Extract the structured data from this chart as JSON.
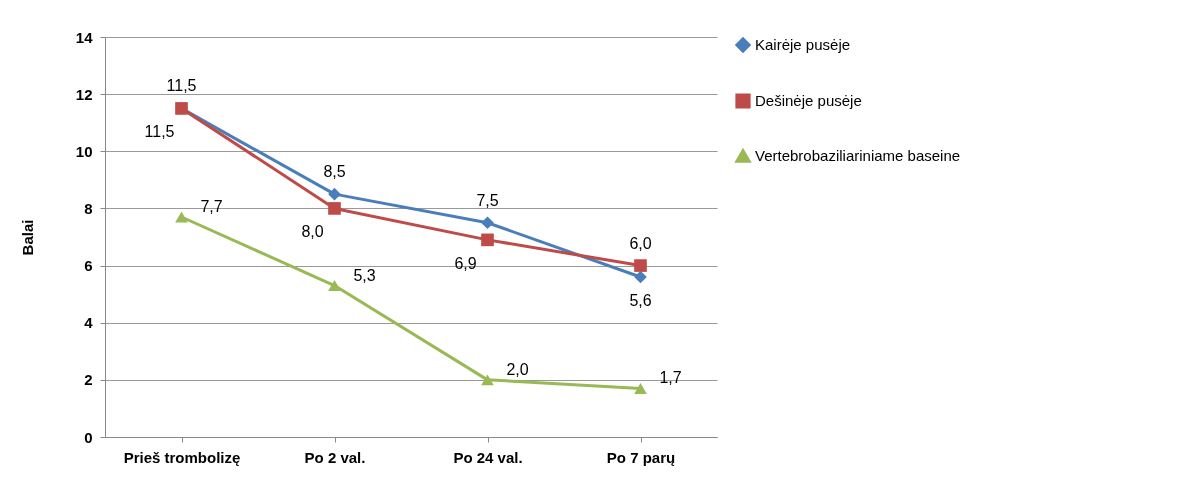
{
  "chart_data": {
    "type": "line",
    "ylabel": "Balai",
    "categories": [
      "Prieš trombolizę",
      "Po 2 val.",
      "Po 24 val.",
      "Po 7 parų"
    ],
    "series": [
      {
        "name": "Kairėje pusėje",
        "color": "#4a7ebb",
        "marker": "diamond",
        "values": [
          11.5,
          8.5,
          7.5,
          5.6
        ],
        "value_labels": [
          "11,5",
          "8,5",
          "7,5",
          "5,6"
        ]
      },
      {
        "name": "Dešinėje pusėje",
        "color": "#be4b48",
        "marker": "square",
        "values": [
          11.5,
          8.0,
          6.9,
          6.0
        ],
        "value_labels": [
          "11,5",
          "8,0",
          "6,9",
          "6,0"
        ]
      },
      {
        "name": "Vertebrobaziliariniame baseine",
        "color": "#98b954",
        "marker": "triangle",
        "values": [
          7.7,
          5.3,
          2.0,
          1.7
        ],
        "value_labels": [
          "7,7",
          "5,3",
          "2,0",
          "1,7"
        ]
      }
    ],
    "ylim": [
      0,
      14
    ],
    "yticks": [
      0,
      2,
      4,
      6,
      8,
      10,
      12,
      14
    ],
    "grid": "y",
    "legend": "right"
  }
}
